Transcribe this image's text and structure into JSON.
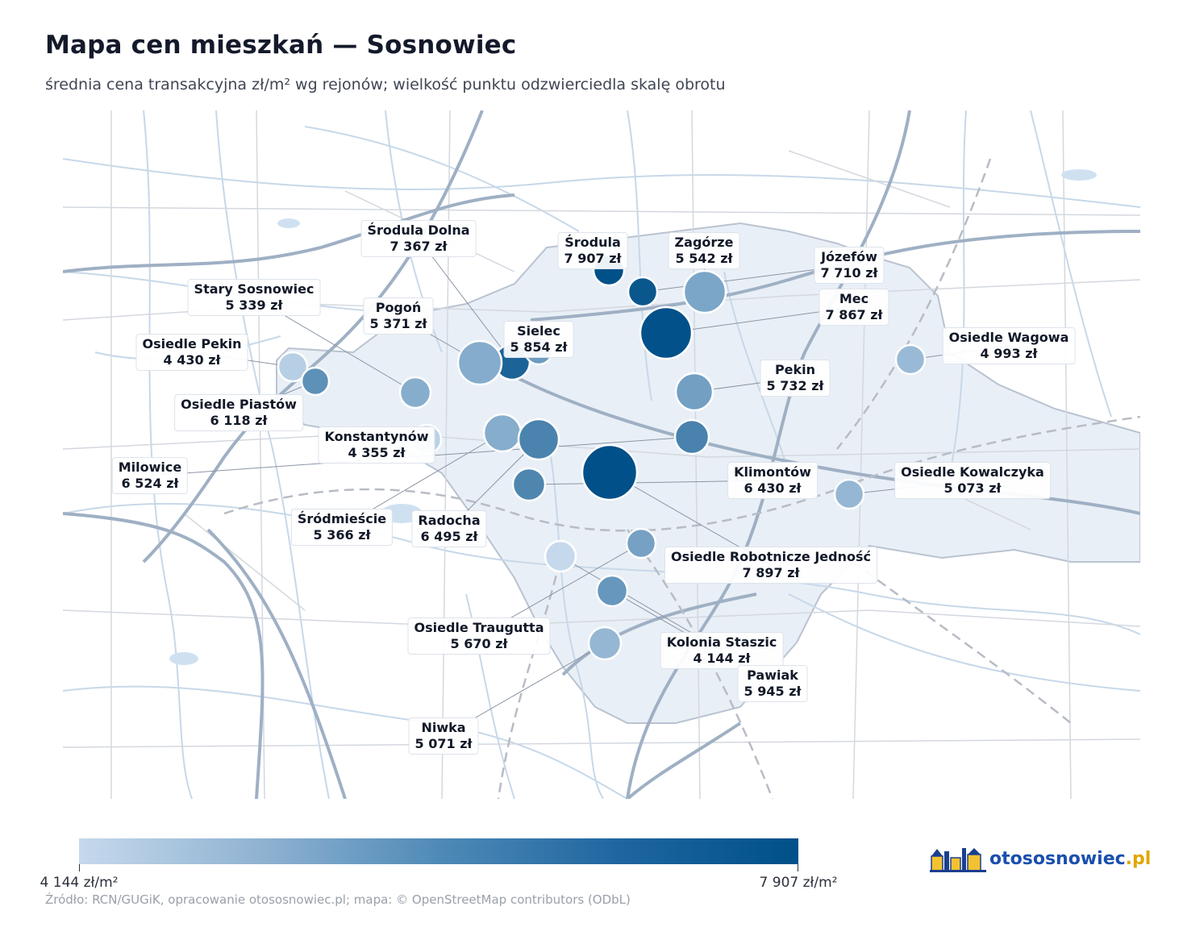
{
  "title": "Mapa cen mieszkań — Sosnowiec",
  "subtitle": "średnia cena transakcyjna zł/m² wg rejonów; wielkość punktu odzwierciedla skalę obrotu",
  "colorbar": {
    "min_label": "4 144 zł/m²",
    "max_label": "7 907 zł/m²",
    "min": 4144,
    "max": 7907,
    "colors": [
      "#c6d9ec",
      "#005089"
    ]
  },
  "source": "Źródło: RCN/GUGiK, opracowanie otososnowiec.pl; mapa: © OpenStreetMap contributors (ODbL)",
  "logo": {
    "name": "otososnowiec",
    "tld": ".pl",
    "icon": "town-skyline-icon"
  },
  "chart_data": {
    "type": "map-bubble",
    "unit": "zł/m²",
    "districts": [
      {
        "name": "Środula Dolna",
        "label": "7 367 zł",
        "price": 7367
      },
      {
        "name": "Środula",
        "label": "7 907 zł",
        "price": 7907
      },
      {
        "name": "Zagórze",
        "label": "5 542 zł",
        "price": 5542
      },
      {
        "name": "Józefów",
        "label": "7 710 zł",
        "price": 7710
      },
      {
        "name": "Stary Sosnowiec",
        "label": "5 339 zł",
        "price": 5339
      },
      {
        "name": "Pogoń",
        "label": "5 371 zł",
        "price": 5371
      },
      {
        "name": "Mec",
        "label": "7 867 zł",
        "price": 7867
      },
      {
        "name": "Osiedle Pekin",
        "label": "4 430 zł",
        "price": 4430
      },
      {
        "name": "Sielec",
        "label": "5 854 zł",
        "price": 5854
      },
      {
        "name": "Osiedle Wagowa",
        "label": "4 993 zł",
        "price": 4993
      },
      {
        "name": "Pekin",
        "label": "5 732 zł",
        "price": 5732
      },
      {
        "name": "Osiedle Piastów",
        "label": "6 118 zł",
        "price": 6118
      },
      {
        "name": "Konstantynów",
        "label": "4 355 zł",
        "price": 4355
      },
      {
        "name": "Milowice",
        "label": "6 524 zł",
        "price": 6524
      },
      {
        "name": "Klimontów",
        "label": "6 430 zł",
        "price": 6430
      },
      {
        "name": "Osiedle Kowalczyka",
        "label": "5 073 zł",
        "price": 5073
      },
      {
        "name": "Śródmieście",
        "label": "5 366 zł",
        "price": 5366
      },
      {
        "name": "Radocha",
        "label": "6 495 zł",
        "price": 6495
      },
      {
        "name": "Osiedle Robotnicze Jedność",
        "label": "7 897 zł",
        "price": 7897
      },
      {
        "name": "Osiedle Traugutta",
        "label": "5 670 zł",
        "price": 5670
      },
      {
        "name": "Kolonia Staszic",
        "label": "4 144 zł",
        "price": 4144
      },
      {
        "name": "Pawiak",
        "label": "5 945 zł",
        "price": 5945
      },
      {
        "name": "Niwka",
        "label": "5 071 zł",
        "price": 5071
      }
    ]
  }
}
